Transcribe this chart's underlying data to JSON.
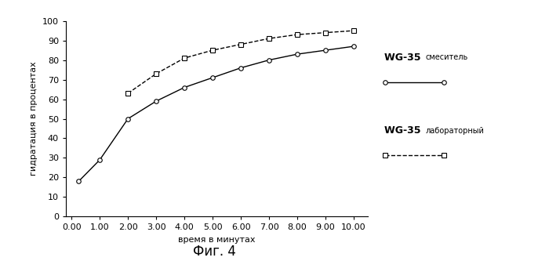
{
  "title": "Фиг. 4",
  "xlabel": "время в минутах",
  "ylabel": "гидратация в процентах",
  "xlim": [
    -0.2,
    10.5
  ],
  "ylim": [
    0,
    100
  ],
  "xticks": [
    0.0,
    1.0,
    2.0,
    3.0,
    4.0,
    5.0,
    6.0,
    7.0,
    8.0,
    9.0,
    10.0
  ],
  "yticks": [
    0,
    10,
    20,
    30,
    40,
    50,
    60,
    70,
    80,
    90,
    100
  ],
  "xtick_labels": [
    "0.00",
    "1.00",
    "2.00",
    "3.00",
    "4.00",
    "5.00",
    "6.00",
    "7.00",
    "8.00",
    "9.00",
    "10.00"
  ],
  "series1_label": "WG-35 смеситель",
  "series1_x": [
    0.25,
    1.0,
    2.0,
    3.0,
    4.0,
    5.0,
    6.0,
    7.0,
    8.0,
    9.0,
    10.0
  ],
  "series1_y": [
    18,
    29,
    50,
    59,
    66,
    71,
    76,
    80,
    83,
    85,
    87
  ],
  "series1_color": "#000000",
  "series1_linestyle": "-",
  "series1_marker": "o",
  "series2_label": "WG-35 лабораторный",
  "series2_x": [
    2.0,
    3.0,
    4.0,
    5.0,
    6.0,
    7.0,
    8.0,
    9.0,
    10.0
  ],
  "series2_y": [
    63,
    73,
    81,
    85,
    88,
    91,
    93,
    94,
    95
  ],
  "series2_color": "#000000",
  "series2_linestyle": "--",
  "series2_marker": "s",
  "bg_color": "#ffffff",
  "legend_label_fontsize": 9,
  "axis_tick_fontsize": 8,
  "axis_label_fontsize": 8,
  "title_fontsize": 12
}
